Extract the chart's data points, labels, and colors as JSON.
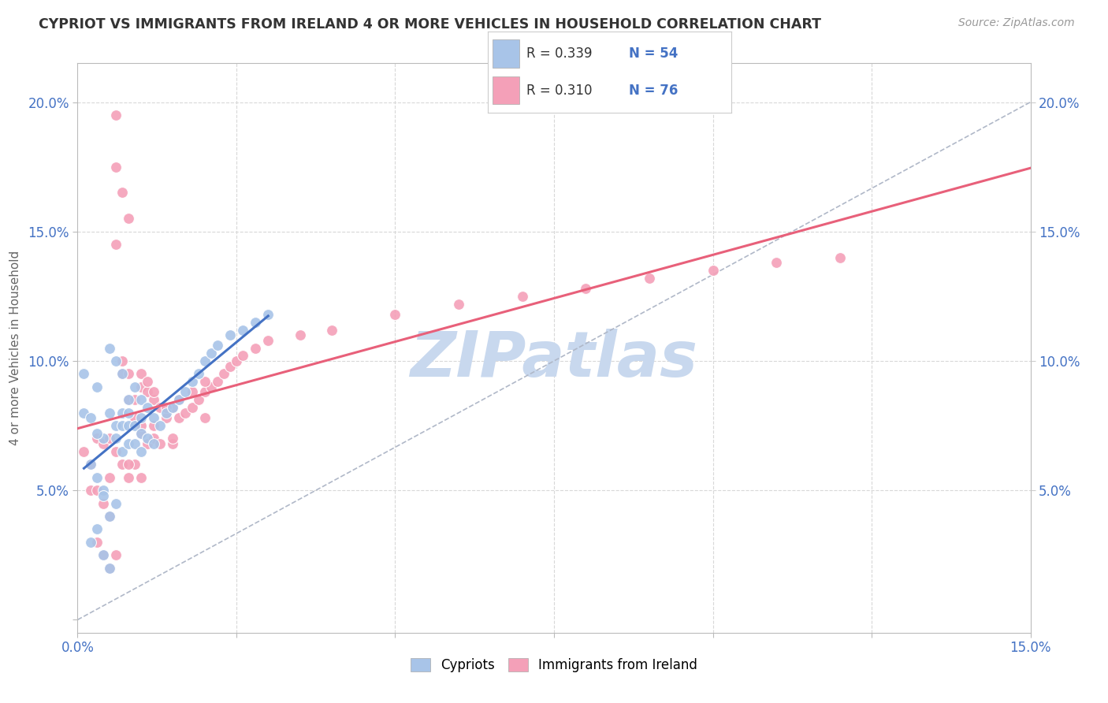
{
  "title": "CYPRIOT VS IMMIGRANTS FROM IRELAND 4 OR MORE VEHICLES IN HOUSEHOLD CORRELATION CHART",
  "source": "Source: ZipAtlas.com",
  "ylabel": "4 or more Vehicles in Household",
  "xlim": [
    0.0,
    0.15
  ],
  "ylim": [
    -0.005,
    0.215
  ],
  "legend_r1": "R = 0.339",
  "legend_n1": "N = 54",
  "legend_r2": "R = 0.310",
  "legend_n2": "N = 76",
  "cypriot_color": "#a8c4e8",
  "ireland_color": "#f4a0b8",
  "trendline_cypriot_color": "#4472c4",
  "trendline_ireland_color": "#e8607a",
  "diagonal_color": "#b0b8c8",
  "watermark_color": "#c8d8ee",
  "background_color": "#ffffff",
  "grid_color": "#d8d8d8",
  "cypriot_x": [
    0.001,
    0.002,
    0.002,
    0.003,
    0.003,
    0.003,
    0.004,
    0.004,
    0.004,
    0.005,
    0.005,
    0.005,
    0.005,
    0.006,
    0.006,
    0.006,
    0.006,
    0.007,
    0.007,
    0.007,
    0.007,
    0.008,
    0.008,
    0.008,
    0.008,
    0.009,
    0.009,
    0.009,
    0.01,
    0.01,
    0.01,
    0.01,
    0.011,
    0.011,
    0.012,
    0.012,
    0.013,
    0.014,
    0.015,
    0.016,
    0.017,
    0.018,
    0.019,
    0.02,
    0.021,
    0.022,
    0.024,
    0.026,
    0.028,
    0.03,
    0.001,
    0.002,
    0.003,
    0.004
  ],
  "cypriot_y": [
    0.08,
    0.06,
    0.03,
    0.09,
    0.055,
    0.035,
    0.07,
    0.05,
    0.025,
    0.105,
    0.08,
    0.04,
    0.02,
    0.1,
    0.075,
    0.07,
    0.045,
    0.095,
    0.08,
    0.075,
    0.065,
    0.085,
    0.08,
    0.075,
    0.068,
    0.09,
    0.075,
    0.068,
    0.085,
    0.078,
    0.072,
    0.065,
    0.082,
    0.07,
    0.078,
    0.068,
    0.075,
    0.08,
    0.082,
    0.085,
    0.088,
    0.092,
    0.095,
    0.1,
    0.103,
    0.106,
    0.11,
    0.112,
    0.115,
    0.118,
    0.095,
    0.078,
    0.072,
    0.048
  ],
  "ireland_x": [
    0.001,
    0.002,
    0.002,
    0.003,
    0.003,
    0.004,
    0.004,
    0.005,
    0.005,
    0.005,
    0.006,
    0.006,
    0.006,
    0.007,
    0.007,
    0.007,
    0.008,
    0.008,
    0.008,
    0.009,
    0.009,
    0.01,
    0.01,
    0.01,
    0.011,
    0.011,
    0.012,
    0.012,
    0.013,
    0.013,
    0.014,
    0.015,
    0.015,
    0.016,
    0.017,
    0.018,
    0.019,
    0.02,
    0.021,
    0.022,
    0.023,
    0.024,
    0.025,
    0.026,
    0.028,
    0.03,
    0.035,
    0.04,
    0.05,
    0.06,
    0.07,
    0.08,
    0.09,
    0.1,
    0.11,
    0.12,
    0.003,
    0.004,
    0.005,
    0.006,
    0.006,
    0.007,
    0.008,
    0.009,
    0.01,
    0.011,
    0.012,
    0.014,
    0.016,
    0.018,
    0.02,
    0.008,
    0.01,
    0.012,
    0.015,
    0.02
  ],
  "ireland_y": [
    0.065,
    0.06,
    0.05,
    0.07,
    0.05,
    0.068,
    0.045,
    0.07,
    0.055,
    0.04,
    0.195,
    0.175,
    0.065,
    0.165,
    0.1,
    0.06,
    0.155,
    0.085,
    0.055,
    0.085,
    0.06,
    0.09,
    0.072,
    0.055,
    0.088,
    0.068,
    0.085,
    0.07,
    0.082,
    0.068,
    0.078,
    0.082,
    0.068,
    0.078,
    0.08,
    0.082,
    0.085,
    0.088,
    0.09,
    0.092,
    0.095,
    0.098,
    0.1,
    0.102,
    0.105,
    0.108,
    0.11,
    0.112,
    0.118,
    0.122,
    0.125,
    0.128,
    0.132,
    0.135,
    0.138,
    0.14,
    0.03,
    0.025,
    0.02,
    0.145,
    0.025,
    0.095,
    0.095,
    0.078,
    0.095,
    0.092,
    0.088,
    0.082,
    0.085,
    0.088,
    0.092,
    0.06,
    0.075,
    0.075,
    0.07,
    0.078
  ]
}
